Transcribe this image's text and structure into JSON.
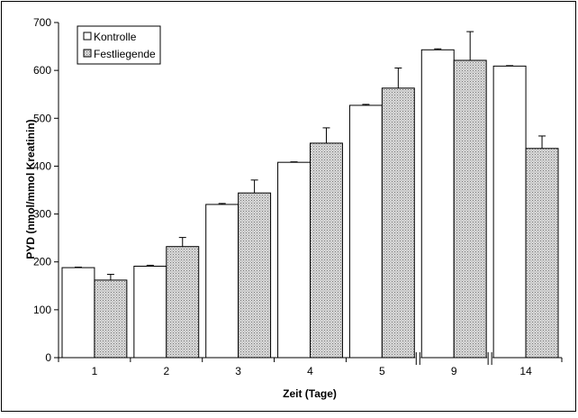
{
  "chart_data": {
    "type": "bar",
    "title": "",
    "xlabel": "Zeit (Tage)",
    "ylabel": "PYD (nmol/mmol Kreatinin)",
    "ylim": [
      0,
      700
    ],
    "yticks": [
      0,
      100,
      200,
      300,
      400,
      500,
      600,
      700
    ],
    "categories": [
      "1",
      "2",
      "3",
      "4",
      "5",
      "9",
      "14"
    ],
    "axis_breaks_after": [
      "5",
      "9"
    ],
    "grid": false,
    "legend_position": "top-left",
    "series": [
      {
        "name": "Kontrolle",
        "fill": "#ffffff",
        "values": [
          188,
          191,
          320,
          408,
          527,
          643,
          609
        ],
        "errors": [
          1,
          2,
          2,
          1,
          2,
          2,
          1
        ]
      },
      {
        "name": "Festliegende",
        "fill": "#c8c8c8",
        "values": [
          162,
          232,
          344,
          448,
          563,
          621,
          437
        ],
        "errors": [
          12,
          19,
          27,
          32,
          42,
          60,
          26
        ]
      }
    ]
  }
}
